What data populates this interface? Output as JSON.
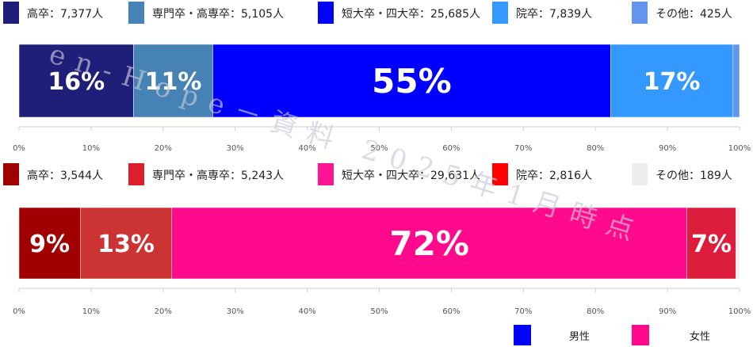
{
  "chart_data": [
    {
      "type": "bar",
      "orientation": "horizontal-stacked",
      "group": "男性",
      "legend": [
        {
          "label": "高卒：7,377人",
          "color": "#1f1f7a"
        },
        {
          "label": "専門卒・高専卒：5,105人",
          "color": "#4682b4"
        },
        {
          "label": "短大卒・四大卒：25,685人",
          "color": "#0000ff"
        },
        {
          "label": "院卒：7,839人",
          "color": "#3399ff"
        },
        {
          "label": "その他：425人",
          "color": "#6495ed"
        }
      ],
      "segments": [
        {
          "category": "高卒",
          "value": 15.9,
          "label": "16%",
          "color": "#1f1f7a"
        },
        {
          "category": "専門卒・高専卒",
          "value": 11.0,
          "label": "11%",
          "color": "#4682b4"
        },
        {
          "category": "短大卒・四大卒",
          "value": 55.2,
          "label": "55%",
          "color": "#0000ff"
        },
        {
          "category": "院卒",
          "value": 17.0,
          "label": "17%",
          "color": "#3399ff"
        },
        {
          "category": "その他",
          "value": 0.9,
          "label": "",
          "color": "#6495ed"
        }
      ],
      "xlim": [
        0,
        100
      ],
      "ticks": [
        "0%",
        "10%",
        "20%",
        "30%",
        "40%",
        "50%",
        "60%",
        "70%",
        "80%",
        "90%",
        "100%"
      ]
    },
    {
      "type": "bar",
      "orientation": "horizontal-stacked",
      "group": "女性",
      "legend": [
        {
          "label": "高卒：3,544人",
          "color": "#a00000"
        },
        {
          "label": "専門卒・高専卒：5,243人",
          "color": "#dc1e2d"
        },
        {
          "label": "短大卒・四大卒：29,631人",
          "color": "#ff1493"
        },
        {
          "label": "院卒：2,816人",
          "color": "#ff0000"
        },
        {
          "label": "その他：189人",
          "color": "#eeeeee"
        }
      ],
      "segments": [
        {
          "category": "高卒",
          "value": 8.5,
          "label": "9%",
          "color": "#a00000"
        },
        {
          "category": "専門卒・高専卒",
          "value": 12.7,
          "label": "13%",
          "color": "#cc3333"
        },
        {
          "category": "短大卒・四大卒",
          "value": 71.5,
          "label": "72%",
          "color": "#ff0a8c"
        },
        {
          "category": "院卒",
          "value": 6.8,
          "label": "7%",
          "color": "#dc1e3c"
        },
        {
          "category": "その他",
          "value": 0.5,
          "label": "",
          "color": "#eeeeee"
        }
      ],
      "xlim": [
        0,
        100
      ],
      "ticks": [
        "0%",
        "10%",
        "20%",
        "30%",
        "40%",
        "50%",
        "60%",
        "70%",
        "80%",
        "90%",
        "100%"
      ]
    }
  ],
  "gender_legend": [
    {
      "label": "男性",
      "color": "#0000ff"
    },
    {
      "label": "女性",
      "color": "#ff0a8c"
    }
  ],
  "watermark": "en‑Hope－資料 2025年1月時点"
}
